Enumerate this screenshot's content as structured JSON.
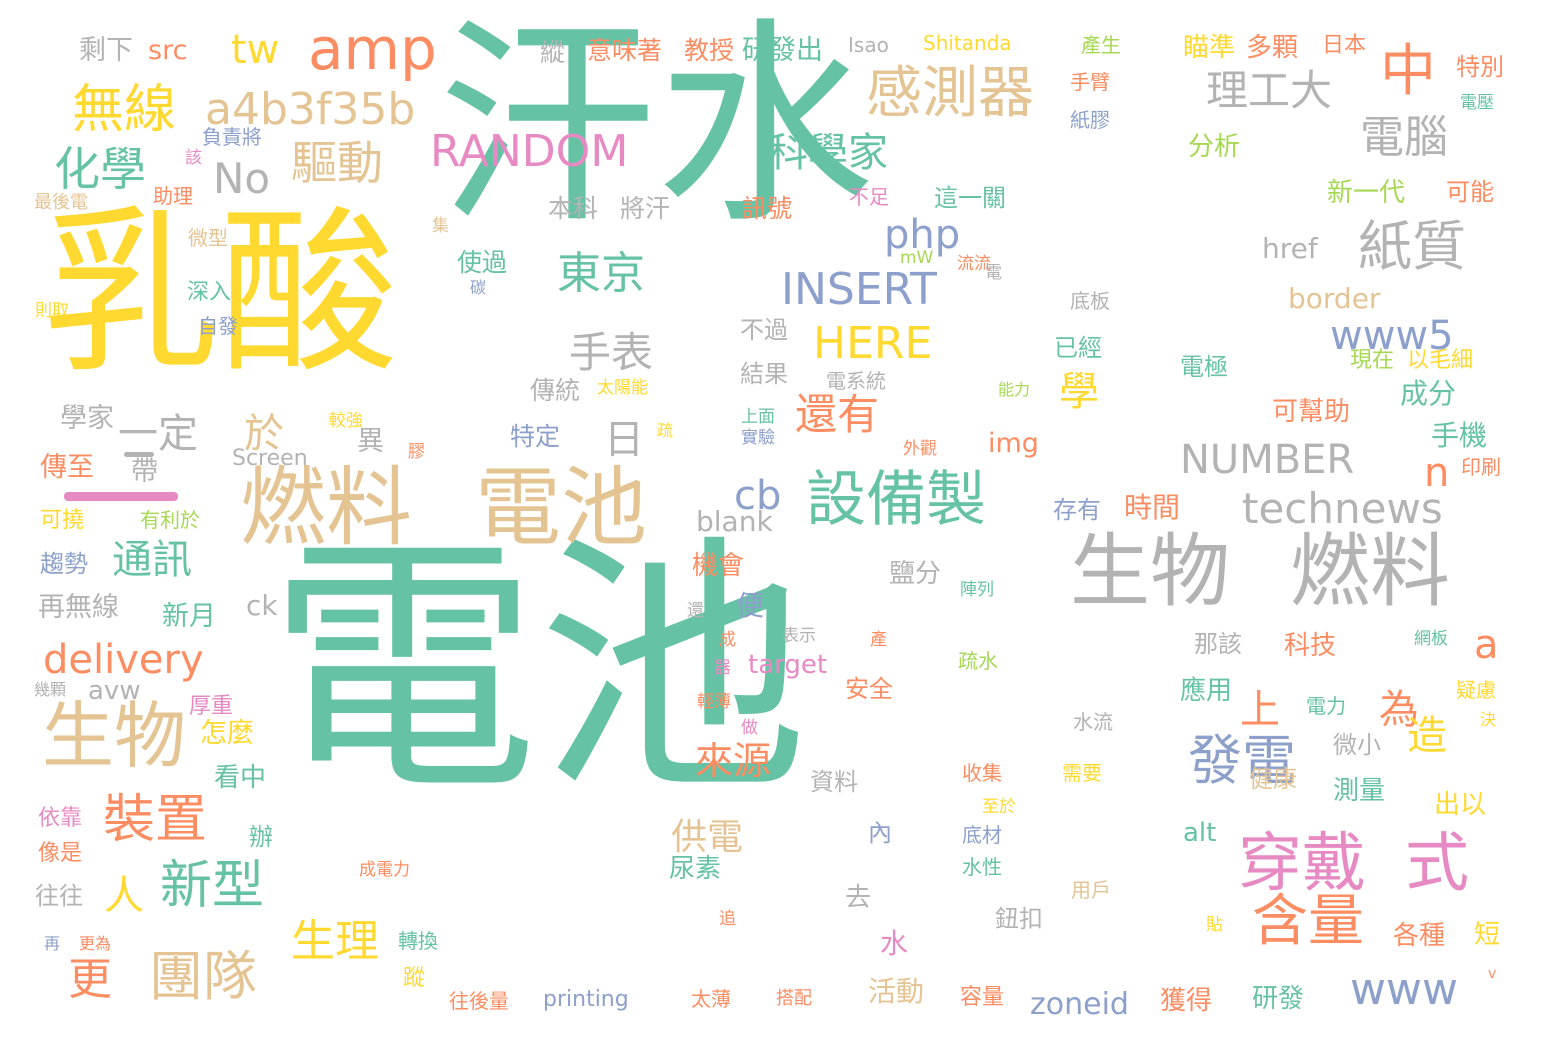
{
  "colors": {
    "teal": "#66c2a5",
    "orange": "#fc8d62",
    "blue": "#8da0cb",
    "pink": "#e78ac3",
    "green": "#a6d854",
    "yellow": "#ffd92f",
    "tan": "#e5c494",
    "gray": "#b3b3b3"
  },
  "words": [
    {
      "text": "汗水"
    },
    {
      "text": "電池"
    },
    {
      "text": "乳酸"
    },
    {
      "text": "燃料"
    },
    {
      "text": "電池"
    },
    {
      "text": "生物"
    },
    {
      "text": "燃料"
    },
    {
      "text": "設備製"
    },
    {
      "text": "穿戴"
    },
    {
      "text": "式"
    },
    {
      "text": "生物"
    },
    {
      "text": "中"
    },
    {
      "text": "感測器"
    },
    {
      "text": "amp"
    },
    {
      "text": "tw"
    },
    {
      "text": "a4b3f35b"
    },
    {
      "text": "無線"
    },
    {
      "text": "驅動"
    },
    {
      "text": "化學"
    },
    {
      "text": "No"
    },
    {
      "text": "紙質"
    },
    {
      "text": "理工大"
    },
    {
      "text": "電腦"
    },
    {
      "text": "科學家"
    },
    {
      "text": "RANDOM"
    },
    {
      "text": "php"
    },
    {
      "text": "INSERT"
    },
    {
      "text": "東京"
    },
    {
      "text": "手表"
    },
    {
      "text": "HERE"
    },
    {
      "text": "www5"
    },
    {
      "text": "technews"
    },
    {
      "text": "NUMBER"
    },
    {
      "text": "裝置"
    },
    {
      "text": "新型"
    },
    {
      "text": "團隊"
    },
    {
      "text": "生理"
    },
    {
      "text": "更"
    },
    {
      "text": "人"
    },
    {
      "text": "發電"
    },
    {
      "text": "含量"
    },
    {
      "text": "www"
    },
    {
      "text": "zoneid"
    },
    {
      "text": "delivery"
    },
    {
      "text": "通訊"
    },
    {
      "text": "還有"
    },
    {
      "text": "cb"
    },
    {
      "text": "日"
    },
    {
      "text": "一定"
    },
    {
      "text": "於"
    },
    {
      "text": "來源"
    },
    {
      "text": "供電"
    },
    {
      "text": "為"
    },
    {
      "text": "上"
    },
    {
      "text": "造"
    },
    {
      "text": "學"
    },
    {
      "text": "n"
    },
    {
      "text": "a"
    },
    {
      "text": "剩下"
    },
    {
      "text": "src"
    },
    {
      "text": "意味著"
    },
    {
      "text": "教授"
    },
    {
      "text": "研發出"
    },
    {
      "text": "Isao"
    },
    {
      "text": "Shitanda"
    },
    {
      "text": "產生"
    },
    {
      "text": "瞄準"
    },
    {
      "text": "多顆"
    },
    {
      "text": "日本"
    },
    {
      "text": "特別"
    },
    {
      "text": "縱"
    },
    {
      "text": "手臂"
    },
    {
      "text": "紙膠"
    },
    {
      "text": "電壓"
    },
    {
      "text": "分析"
    },
    {
      "text": "可能"
    },
    {
      "text": "新一代"
    },
    {
      "text": "負責將"
    },
    {
      "text": "該"
    },
    {
      "text": "最後電"
    },
    {
      "text": "助理"
    },
    {
      "text": "訊號"
    },
    {
      "text": "不足"
    },
    {
      "text": "這一關"
    },
    {
      "text": "本科"
    },
    {
      "text": "將汗"
    },
    {
      "text": "微型"
    },
    {
      "text": "集"
    },
    {
      "text": "使過"
    },
    {
      "text": "流流"
    },
    {
      "text": "mW"
    },
    {
      "text": "電"
    },
    {
      "text": "碳"
    },
    {
      "text": "深入"
    },
    {
      "text": "自發"
    },
    {
      "text": "則取"
    },
    {
      "text": "href"
    },
    {
      "text": "底板"
    },
    {
      "text": "border"
    },
    {
      "text": "不過"
    },
    {
      "text": "結果"
    },
    {
      "text": "電系統"
    },
    {
      "text": "已經"
    },
    {
      "text": "現在"
    },
    {
      "text": "以毛細"
    },
    {
      "text": "電極"
    },
    {
      "text": "成分"
    },
    {
      "text": "傳統"
    },
    {
      "text": "太陽能"
    },
    {
      "text": "學家"
    },
    {
      "text": "特定"
    },
    {
      "text": "上面"
    },
    {
      "text": "實驗"
    },
    {
      "text": "能力"
    },
    {
      "text": "較強"
    },
    {
      "text": "異"
    },
    {
      "text": "疏"
    },
    {
      "text": "可幫助"
    },
    {
      "text": "手機"
    },
    {
      "text": "帶"
    },
    {
      "text": "外觀"
    },
    {
      "text": "img"
    },
    {
      "text": "印刷"
    },
    {
      "text": "傳至"
    },
    {
      "text": "Screen"
    },
    {
      "text": "膠"
    },
    {
      "text": "blank"
    },
    {
      "text": "存有"
    },
    {
      "text": "時間"
    },
    {
      "text": "可撓"
    },
    {
      "text": "有利於"
    },
    {
      "text": "鹽分"
    },
    {
      "text": "機會"
    },
    {
      "text": "陣列"
    },
    {
      "text": "趨勢"
    },
    {
      "text": "ck"
    },
    {
      "text": "再無線"
    },
    {
      "text": "新月"
    },
    {
      "text": "便"
    },
    {
      "text": "還"
    },
    {
      "text": "成"
    },
    {
      "text": "表示"
    },
    {
      "text": "產"
    },
    {
      "text": "那該"
    },
    {
      "text": "網板"
    },
    {
      "text": "target"
    },
    {
      "text": "科技"
    },
    {
      "text": "器"
    },
    {
      "text": "疏水"
    },
    {
      "text": "avw"
    },
    {
      "text": "幾顆"
    },
    {
      "text": "厚重"
    },
    {
      "text": "輕薄"
    },
    {
      "text": "安全"
    },
    {
      "text": "應用"
    },
    {
      "text": "電力"
    },
    {
      "text": "疑慮"
    },
    {
      "text": "怎麼"
    },
    {
      "text": "做"
    },
    {
      "text": "水流"
    },
    {
      "text": "決"
    },
    {
      "text": "微小"
    },
    {
      "text": "看中"
    },
    {
      "text": "資料"
    },
    {
      "text": "收集"
    },
    {
      "text": "需要"
    },
    {
      "text": "健康"
    },
    {
      "text": "測量"
    },
    {
      "text": "出以"
    },
    {
      "text": "依靠"
    },
    {
      "text": "辦"
    },
    {
      "text": "至於"
    },
    {
      "text": "像是"
    },
    {
      "text": "底材"
    },
    {
      "text": "alt"
    },
    {
      "text": "內"
    },
    {
      "text": "尿素"
    },
    {
      "text": "成電力"
    },
    {
      "text": "水性"
    },
    {
      "text": "往往"
    },
    {
      "text": "去"
    },
    {
      "text": "用戶"
    },
    {
      "text": "追"
    },
    {
      "text": "鈕扣"
    },
    {
      "text": "各種"
    },
    {
      "text": "短"
    },
    {
      "text": "貼"
    },
    {
      "text": "再"
    },
    {
      "text": "更為"
    },
    {
      "text": "轉換"
    },
    {
      "text": "水"
    },
    {
      "text": "活動"
    },
    {
      "text": "蹤"
    },
    {
      "text": "v"
    },
    {
      "text": "往後量"
    },
    {
      "text": "printing"
    },
    {
      "text": "太薄"
    },
    {
      "text": "搭配"
    },
    {
      "text": "容量"
    },
    {
      "text": "獲得"
    },
    {
      "text": "研發"
    }
  ]
}
